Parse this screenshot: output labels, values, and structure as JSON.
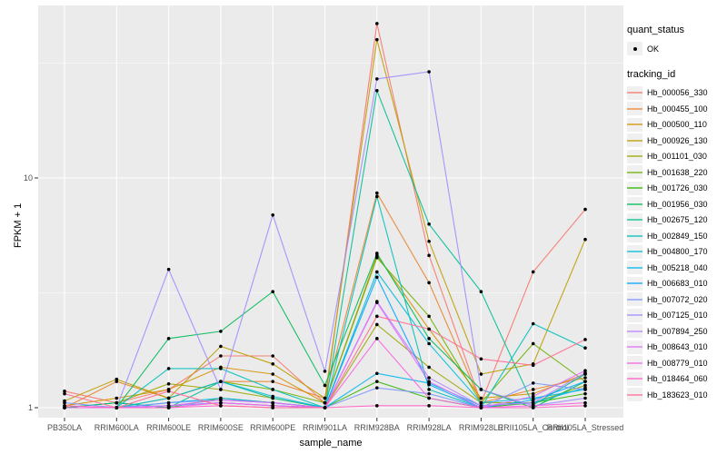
{
  "chart_data": {
    "type": "line",
    "title": "",
    "xlabel": "sample_name",
    "ylabel": "FPKM + 1",
    "y_scale": "log10",
    "ylim": [
      0.88,
      56
    ],
    "y_major_ticks": [
      1,
      10
    ],
    "y_minor_gridlines": [
      3.162,
      31.62
    ],
    "grid": "on",
    "panel_bg": "#EBEBEB",
    "grid_color": "#FFFFFF",
    "point_color": "#000000",
    "tick_color": "#333333",
    "legend_position": "right",
    "categories": [
      "PB350LA",
      "RRIM600LA",
      "RRIM600LE",
      "RRIM600SE",
      "RRIM600PE",
      "RRIM901LA",
      "RRIM928BA",
      "RRIM928LA",
      "RRIM928LE",
      "RRII105LA_Control",
      "RRII105LA_Stressed"
    ],
    "series": [
      {
        "name": "Hb_000056_330",
        "color": "#F8766D",
        "values": [
          1.18,
          1.05,
          1.2,
          1.68,
          1.68,
          1.05,
          47.0,
          4.6,
          1.05,
          3.9,
          7.3
        ]
      },
      {
        "name": "Hb_000455_100",
        "color": "#E9842C",
        "values": [
          1.0,
          1.3,
          1.1,
          1.3,
          1.3,
          1.1,
          8.6,
          3.5,
          1.05,
          1.2,
          1.35
        ]
      },
      {
        "name": "Hb_000500_110",
        "color": "#D69100",
        "values": [
          1.02,
          1.1,
          1.2,
          1.5,
          1.4,
          1.05,
          4.6,
          2.2,
          1.1,
          1.15,
          1.4
        ]
      },
      {
        "name": "Hb_000926_130",
        "color": "#BC9D00",
        "values": [
          1.07,
          1.33,
          1.1,
          1.85,
          1.55,
          1.1,
          40.0,
          5.3,
          1.4,
          1.55,
          5.4
        ]
      },
      {
        "name": "Hb_001101_030",
        "color": "#9CA700",
        "values": [
          1.0,
          1.05,
          1.27,
          1.2,
          1.1,
          1.0,
          2.3,
          1.5,
          1.05,
          1.05,
          1.25
        ]
      },
      {
        "name": "Hb_001638_220",
        "color": "#6FB000",
        "values": [
          1.0,
          1.0,
          1.1,
          1.3,
          1.2,
          1.05,
          4.5,
          2.5,
          1.05,
          1.9,
          1.3
        ]
      },
      {
        "name": "Hb_001726_030",
        "color": "#2DB600",
        "values": [
          1.0,
          1.05,
          1.0,
          1.1,
          1.05,
          1.0,
          1.3,
          1.1,
          1.0,
          1.05,
          1.15
        ]
      },
      {
        "name": "Hb_001956_030",
        "color": "#00BB57",
        "values": [
          1.0,
          1.0,
          2.0,
          2.15,
          3.2,
          1.25,
          4.7,
          2.0,
          1.2,
          1.0,
          1.3
        ]
      },
      {
        "name": "Hb_002675_120",
        "color": "#00BF92",
        "values": [
          1.0,
          1.05,
          1.0,
          1.3,
          1.1,
          1.0,
          24.0,
          6.3,
          3.2,
          1.03,
          1.4
        ]
      },
      {
        "name": "Hb_002849_150",
        "color": "#00C0BB",
        "values": [
          1.0,
          1.0,
          1.48,
          1.48,
          1.2,
          1.0,
          8.3,
          1.2,
          1.0,
          2.32,
          1.82
        ]
      },
      {
        "name": "Hb_004800_170",
        "color": "#00BDD8",
        "values": [
          1.0,
          1.0,
          1.1,
          1.3,
          1.12,
          1.0,
          3.9,
          1.9,
          1.05,
          1.1,
          1.2
        ]
      },
      {
        "name": "Hb_005218_040",
        "color": "#00B5EC",
        "values": [
          1.0,
          1.0,
          1.05,
          1.1,
          1.05,
          1.0,
          1.41,
          1.28,
          1.02,
          1.05,
          1.22
        ]
      },
      {
        "name": "Hb_006683_010",
        "color": "#00A5FF",
        "values": [
          1.0,
          1.0,
          1.02,
          1.05,
          1.02,
          1.0,
          3.7,
          1.26,
          1.0,
          1.08,
          1.3
        ]
      },
      {
        "name": "Hb_007072_020",
        "color": "#7F96FF",
        "values": [
          1.05,
          1.0,
          1.05,
          1.08,
          1.05,
          1.0,
          1.22,
          1.15,
          1.0,
          1.28,
          1.2
        ]
      },
      {
        "name": "Hb_007125_010",
        "color": "#9F8CFF",
        "values": [
          1.0,
          1.0,
          4.0,
          1.2,
          6.9,
          1.44,
          27.0,
          29.0,
          1.2,
          1.02,
          1.1
        ]
      },
      {
        "name": "Hb_007894_250",
        "color": "#BC81FF",
        "values": [
          1.0,
          1.0,
          1.02,
          1.05,
          1.02,
          1.0,
          2.9,
          1.35,
          1.02,
          1.05,
          1.42
        ]
      },
      {
        "name": "Hb_008643_010",
        "color": "#E26EF7",
        "values": [
          1.0,
          1.0,
          1.02,
          1.08,
          1.05,
          1.0,
          2.87,
          1.3,
          1.0,
          1.12,
          1.45
        ]
      },
      {
        "name": "Hb_008779_010",
        "color": "#F863E3",
        "values": [
          1.0,
          1.0,
          1.0,
          1.05,
          1.02,
          1.0,
          2.0,
          1.1,
          1.0,
          1.02,
          1.05
        ]
      },
      {
        "name": "Hb_018464_060",
        "color": "#FF61C7",
        "values": [
          1.02,
          1.0,
          1.0,
          1.02,
          1.0,
          1.0,
          1.02,
          1.02,
          1.0,
          1.0,
          1.02
        ]
      },
      {
        "name": "Hb_183623_010",
        "color": "#FF6B94",
        "values": [
          1.15,
          1.0,
          1.18,
          1.02,
          1.0,
          1.0,
          2.5,
          2.2,
          1.63,
          1.53,
          1.98
        ]
      }
    ]
  },
  "legend": {
    "quant_status": {
      "title": "quant_status",
      "items": [
        {
          "label": "OK"
        }
      ]
    },
    "tracking_id": {
      "title": "tracking_id"
    }
  }
}
